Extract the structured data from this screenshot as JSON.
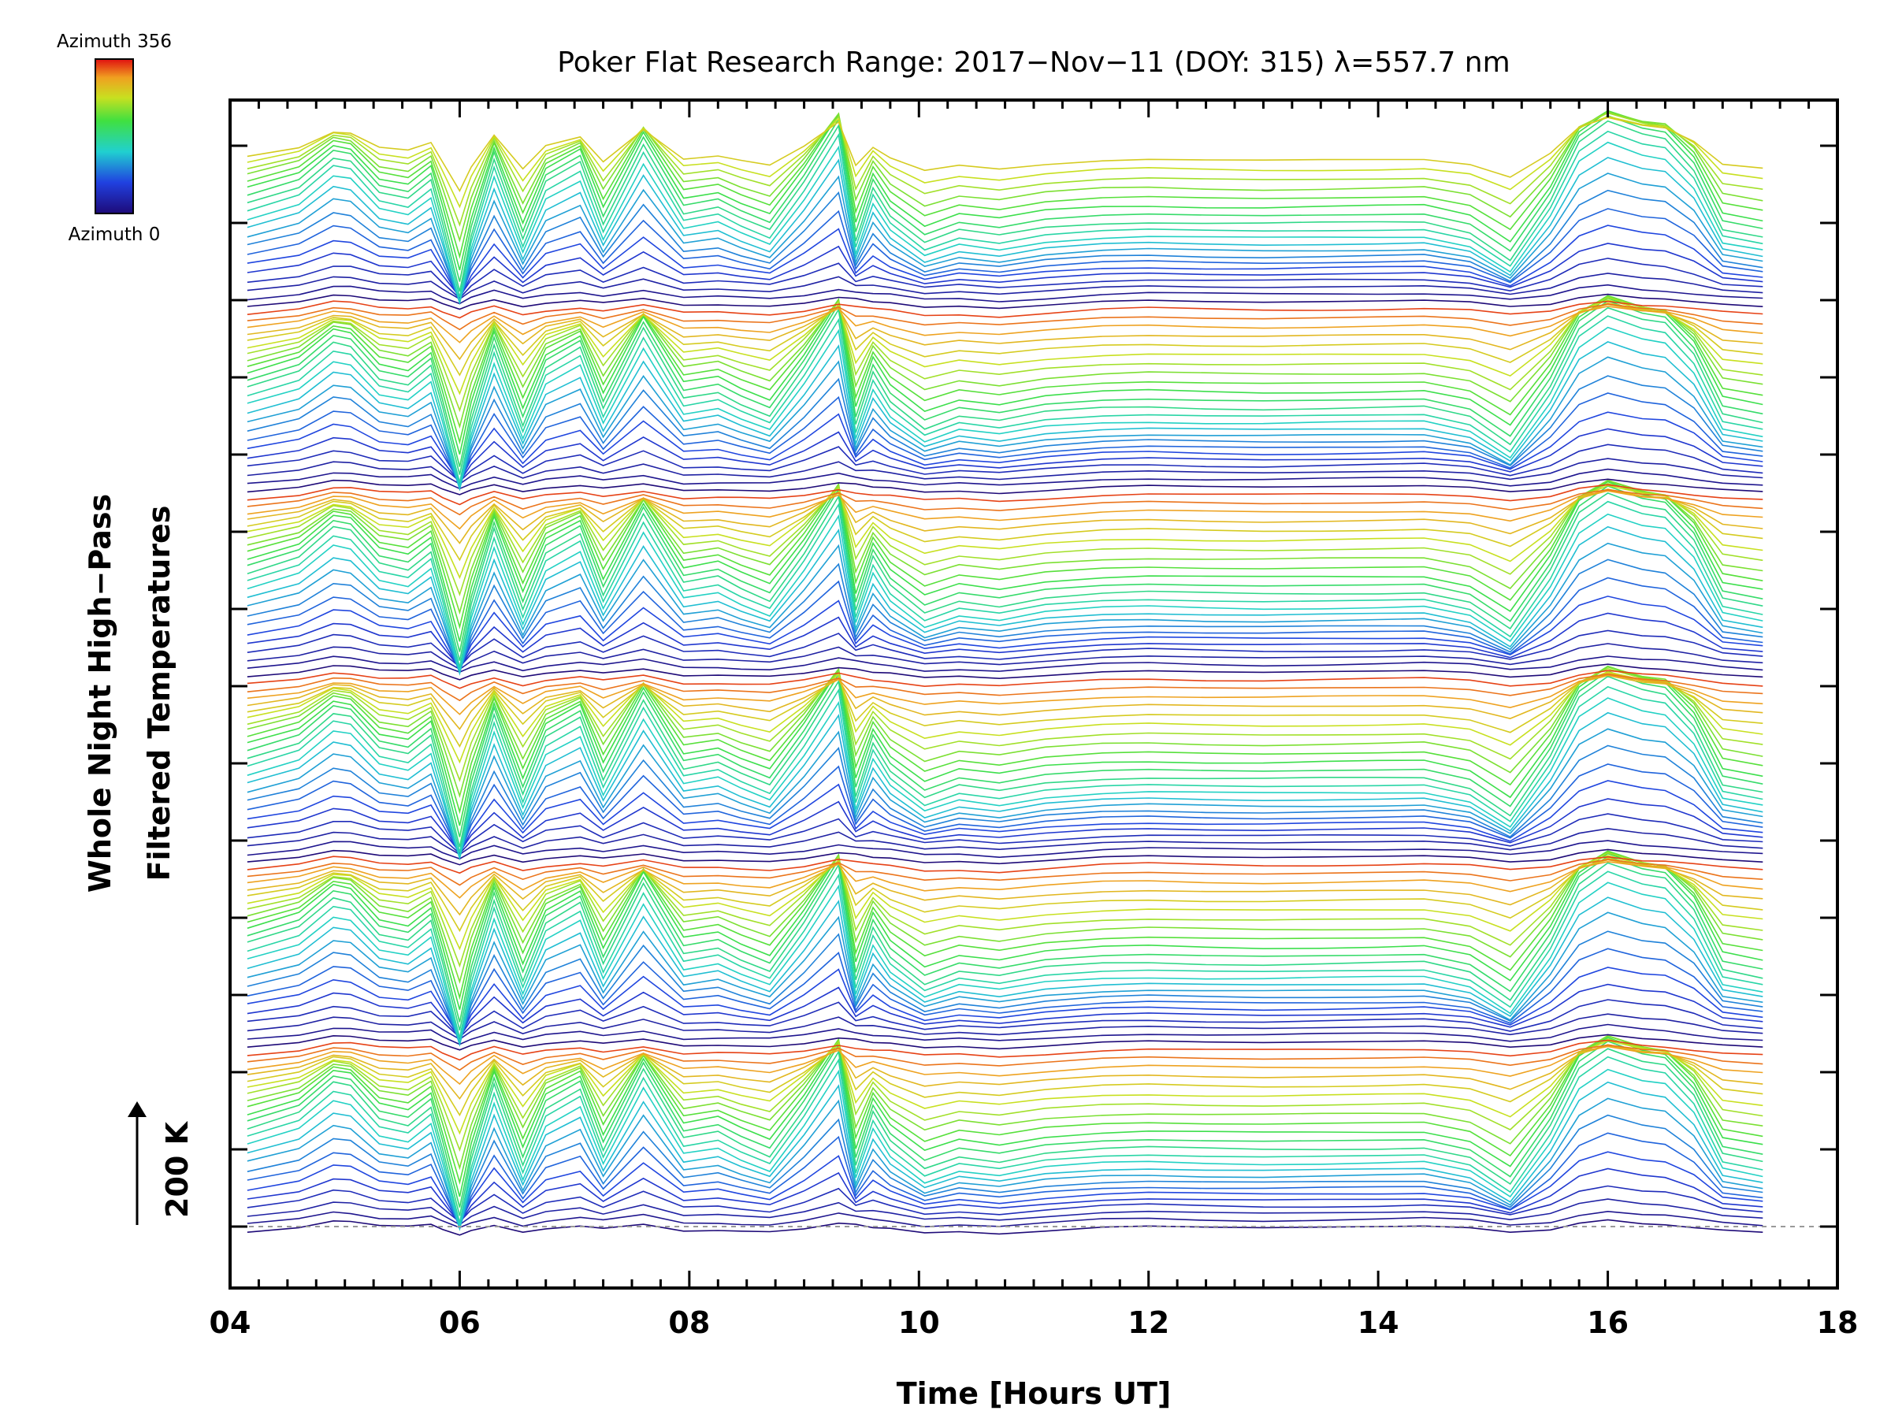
{
  "chart_data": {
    "type": "line",
    "title": "Poker Flat Research Range: 2017−Nov−11 (DOY: 315) λ=557.7 nm",
    "xlabel": "Time [Hours UT]",
    "ylabel_line1": "Whole Night High−Pass",
    "ylabel_line2": "Filtered Temperatures",
    "scale_label": "200 K",
    "xlim": [
      4,
      18
    ],
    "x_ticks": [
      4,
      6,
      8,
      10,
      12,
      14,
      16,
      18
    ],
    "x_tick_labels": [
      "04",
      "06",
      "08",
      "10",
      "12",
      "14",
      "16",
      "18"
    ],
    "colorbar": {
      "top_label": "Azimuth 356",
      "bottom_label": "Azimuth 0",
      "colormap": "rainbow",
      "range": [
        0,
        356
      ]
    },
    "series_count": 140,
    "offset_per_series_K": 20,
    "baseline_style": "dashed gray",
    "x": [
      4.15,
      4.6,
      4.9,
      5.05,
      5.3,
      5.55,
      5.75,
      5.85,
      6.0,
      6.1,
      6.3,
      6.55,
      6.75,
      7.05,
      7.25,
      7.6,
      7.95,
      8.25,
      8.45,
      8.7,
      9.0,
      9.3,
      9.45,
      9.6,
      9.75,
      10.05,
      10.35,
      10.7,
      11.1,
      11.6,
      12.0,
      12.5,
      13.0,
      13.5,
      14.0,
      14.4,
      14.8,
      15.15,
      15.5,
      15.75,
      16.0,
      16.3,
      16.5,
      16.75,
      17.0,
      17.35
    ],
    "common_signal_K": [
      -10,
      -2,
      10,
      9,
      2,
      1,
      4,
      -5,
      -15,
      -7,
      2,
      -10,
      -4,
      1,
      -3,
      4,
      -8,
      -7,
      -8,
      -9,
      -4,
      6,
      4,
      -2,
      -3,
      -11,
      -9,
      -13,
      -8,
      -1,
      1,
      -1,
      -2,
      -1,
      0,
      1,
      -2,
      -10,
      -6,
      6,
      12,
      5,
      3,
      -2,
      -6,
      -10
    ],
    "mode_amplitude_K": [
      20,
      40,
      80,
      75,
      25,
      15,
      45,
      -20,
      -130,
      -40,
      85,
      -45,
      50,
      80,
      -25,
      110,
      0,
      10,
      -10,
      -30,
      50,
      140,
      -60,
      40,
      -10,
      -50,
      -30,
      -35,
      -25,
      -25,
      -25,
      -25,
      -25,
      -25,
      -25,
      -25,
      -40,
      -80,
      20,
      110,
      140,
      125,
      120,
      70,
      -30,
      -40
    ]
  }
}
